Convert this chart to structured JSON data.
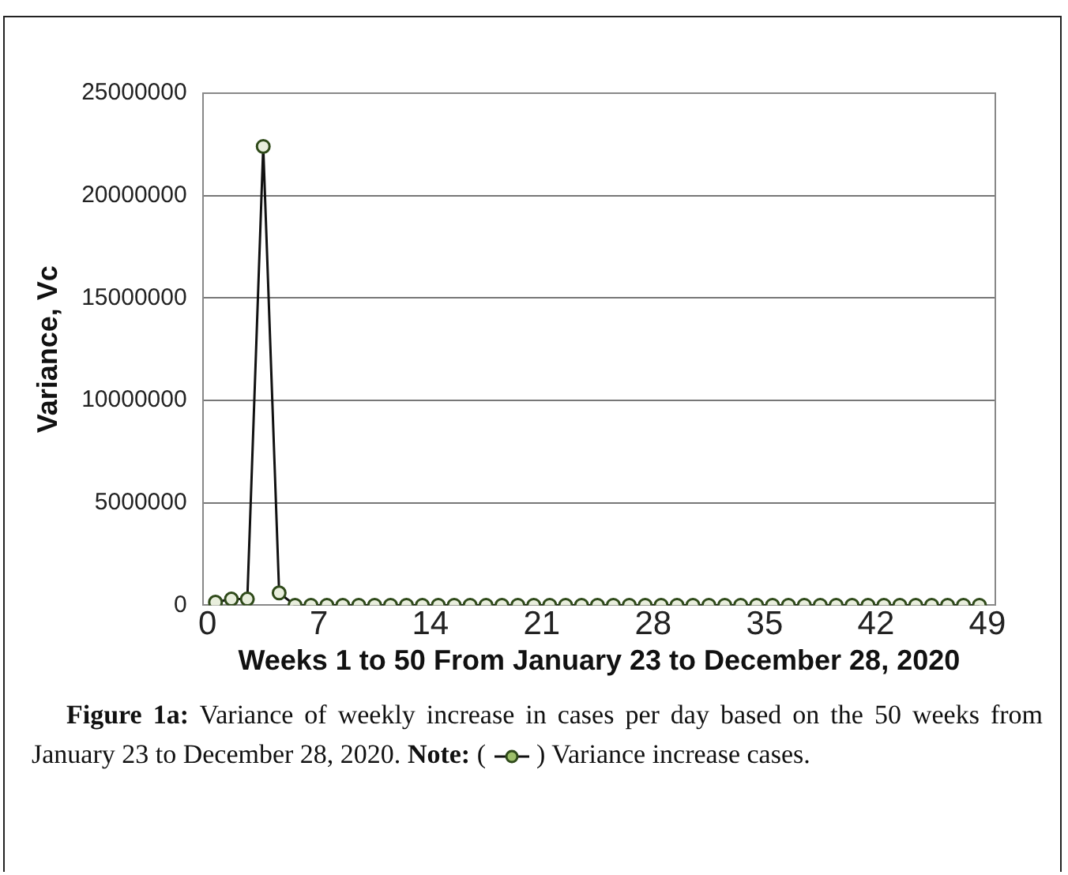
{
  "chart_data": {
    "type": "line",
    "xlabel": "Weeks 1 to 50 From January 23 to December 28, 2020",
    "ylabel": "Variance, Vc",
    "x": [
      0.5,
      1.5,
      2.5,
      3.5,
      4.5,
      5.5,
      6.5,
      7.5,
      8.5,
      9.5,
      10.5,
      11.5,
      12.5,
      13.5,
      14.5,
      15.5,
      16.5,
      17.5,
      18.5,
      19.5,
      20.5,
      21.5,
      22.5,
      23.5,
      24.5,
      25.5,
      26.5,
      27.5,
      28.5,
      29.5,
      30.5,
      31.5,
      32.5,
      33.5,
      34.5,
      35.5,
      36.5,
      37.5,
      38.5,
      39.5,
      40.5,
      41.5,
      42.5,
      43.5,
      44.5,
      45.5,
      46.5,
      47.5,
      48.5
    ],
    "series": [
      {
        "color": "#2f4a1a",
        "values": [
          150000,
          300000,
          300000,
          22400000,
          600000,
          0,
          0,
          0,
          0,
          0,
          0,
          0,
          0,
          0,
          0,
          0,
          0,
          0,
          0,
          0,
          0,
          0,
          0,
          0,
          0,
          0,
          0,
          0,
          0,
          0,
          0,
          0,
          0,
          0,
          0,
          0,
          0,
          0,
          0,
          0,
          0,
          0,
          0,
          0,
          0,
          0,
          0,
          0,
          0
        ]
      }
    ],
    "xlim": [
      -0.3,
      49.5
    ],
    "xticks": [
      0,
      7,
      14,
      21,
      28,
      35,
      42,
      49
    ],
    "ylim": [
      0,
      25000000
    ],
    "yticks": [
      0,
      5000000,
      10000000,
      15000000,
      20000000,
      25000000
    ],
    "grid": "y",
    "legend": false,
    "marker": "circle",
    "line_style": "solid",
    "annotations": [
      "Figure 1a:",
      "Variance of weekly increase in cases per day based on the 50 weeks from January 23 to December 28, 2020.",
      "Note:",
      "(",
      ") Variance increase cases."
    ]
  }
}
